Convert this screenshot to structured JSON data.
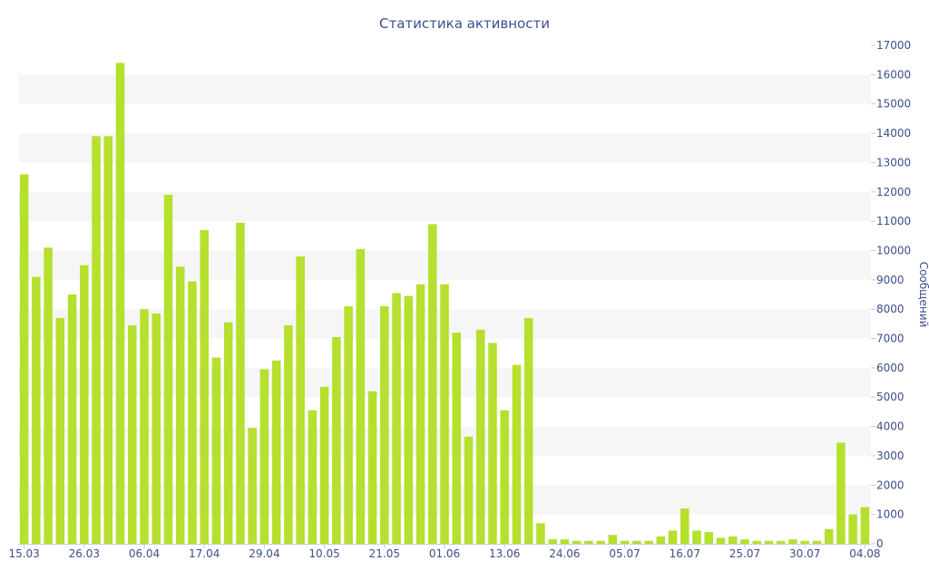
{
  "chart_data": {
    "type": "bar",
    "title": "Статистика активности",
    "ylabel": "Сообщений",
    "xlabel": "",
    "ylim": [
      0,
      17000
    ],
    "y_ticks": [
      0,
      1000,
      2000,
      3000,
      4000,
      5000,
      6000,
      7000,
      8000,
      9000,
      10000,
      11000,
      12000,
      13000,
      14000,
      15000,
      16000,
      17000
    ],
    "x_tick_labels": [
      "15.03",
      "26.03",
      "06.04",
      "17.04",
      "29.04",
      "10.05",
      "21.05",
      "01.06",
      "13.06",
      "24.06",
      "05.07",
      "16.07",
      "25.07",
      "30.07",
      "04.08"
    ],
    "x_tick_positions": [
      0,
      5,
      10,
      15,
      20,
      25,
      30,
      35,
      40,
      45,
      50,
      55,
      60,
      65,
      70
    ],
    "bar_color": "#b5e02e",
    "band_color": "#f6f6f6",
    "text_color": "#3d4f8a",
    "values": [
      12600,
      9100,
      10100,
      7700,
      8500,
      9500,
      13900,
      13900,
      16400,
      7450,
      8000,
      7850,
      11900,
      9450,
      8950,
      10700,
      6350,
      7550,
      10950,
      3950,
      5950,
      6250,
      7450,
      9800,
      4550,
      5350,
      7050,
      8100,
      10050,
      5200,
      8100,
      8550,
      8450,
      8850,
      10900,
      8850,
      7200,
      3650,
      7300,
      6850,
      4550,
      6100,
      7700,
      700,
      150,
      150,
      100,
      100,
      100,
      300,
      100,
      100,
      100,
      250,
      450,
      1200,
      450,
      400,
      200,
      250,
      150,
      100,
      100,
      100,
      150,
      100,
      100,
      500,
      3450,
      1000,
      1250
    ]
  }
}
